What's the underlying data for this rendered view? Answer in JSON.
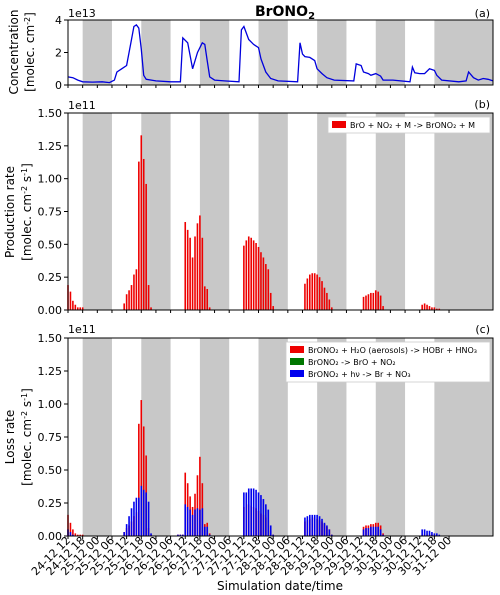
{
  "chart_data": [
    {
      "type": "line",
      "panel_tag": "(a)",
      "title": "BrONO",
      "title_sub": "2",
      "scale_label": "1e13",
      "ylabel_line1": "Concentration",
      "ylabel_line2": "[molec. cm",
      "ylabel_sup": "-2",
      "ylabel_close": "]",
      "ylim": [
        0,
        4
      ],
      "yticks": [
        "0",
        "2",
        "4"
      ],
      "ytick_values": [
        0,
        2,
        4
      ],
      "x_start_hours": 0,
      "x_end_hours": 174,
      "series": [
        {
          "color": "#0000dd",
          "points": [
            [
              0,
              0.5
            ],
            [
              2,
              0.45
            ],
            [
              4,
              0.3
            ],
            [
              6,
              0.2
            ],
            [
              10,
              0.18
            ],
            [
              14,
              0.2
            ],
            [
              17,
              0.15
            ],
            [
              19,
              0.3
            ],
            [
              20,
              0.8
            ],
            [
              22,
              1.0
            ],
            [
              24,
              1.2
            ],
            [
              26,
              2.8
            ],
            [
              27,
              3.6
            ],
            [
              28,
              3.7
            ],
            [
              29,
              3.5
            ],
            [
              30,
              2.2
            ],
            [
              31,
              0.6
            ],
            [
              32,
              0.35
            ],
            [
              36,
              0.25
            ],
            [
              42,
              0.2
            ],
            [
              46,
              0.2
            ],
            [
              47,
              2.9
            ],
            [
              49,
              2.6
            ],
            [
              51,
              1.0
            ],
            [
              53,
              2.0
            ],
            [
              55,
              2.6
            ],
            [
              56,
              2.5
            ],
            [
              57,
              1.5
            ],
            [
              58,
              0.5
            ],
            [
              60,
              0.3
            ],
            [
              64,
              0.25
            ],
            [
              70,
              0.2
            ],
            [
              71,
              3.4
            ],
            [
              72,
              3.6
            ],
            [
              74,
              2.8
            ],
            [
              76,
              2.5
            ],
            [
              78,
              2.3
            ],
            [
              79,
              1.6
            ],
            [
              81,
              0.8
            ],
            [
              83,
              0.4
            ],
            [
              86,
              0.25
            ],
            [
              94,
              0.2
            ],
            [
              95,
              2.6
            ],
            [
              96,
              1.9
            ],
            [
              97,
              1.75
            ],
            [
              99,
              1.7
            ],
            [
              101,
              1.5
            ],
            [
              102,
              1.0
            ],
            [
              104,
              0.7
            ],
            [
              106,
              0.45
            ],
            [
              109,
              0.3
            ],
            [
              117,
              0.25
            ],
            [
              118,
              1.3
            ],
            [
              120,
              1.2
            ],
            [
              121,
              0.8
            ],
            [
              123,
              0.7
            ],
            [
              124,
              0.6
            ],
            [
              126,
              0.7
            ],
            [
              128,
              0.55
            ],
            [
              129,
              0.3
            ],
            [
              133,
              0.3
            ],
            [
              140,
              0.2
            ],
            [
              141,
              1.1
            ],
            [
              142,
              0.75
            ],
            [
              144,
              0.7
            ],
            [
              146,
              0.7
            ],
            [
              148,
              1.0
            ],
            [
              150,
              0.9
            ],
            [
              151,
              0.6
            ],
            [
              153,
              0.3
            ],
            [
              160,
              0.2
            ],
            [
              163,
              0.25
            ],
            [
              164,
              0.8
            ],
            [
              166,
              0.45
            ],
            [
              168,
              0.3
            ],
            [
              170,
              0.4
            ],
            [
              172,
              0.35
            ],
            [
              174,
              0.25
            ]
          ]
        }
      ]
    },
    {
      "type": "bar",
      "panel_tag": "(b)",
      "scale_label": "1e11",
      "ylabel_line1": "Production rate",
      "ylabel_line2": "[molec. cm",
      "ylabel_sup": "-2",
      "ylabel_s": " s",
      "ylabel_sup2": "-1",
      "ylabel_close": "]",
      "ylim": [
        0,
        1.5
      ],
      "yticks": [
        "0.00",
        "0.25",
        "0.50",
        "0.75",
        "1.00",
        "1.25",
        "1.50"
      ],
      "ytick_values": [
        0,
        0.25,
        0.5,
        0.75,
        1.0,
        1.25,
        1.5
      ],
      "legend": [
        {
          "label": "BrO + NO₂ + M -> BrONO₂ + M",
          "color": "#ee0000"
        }
      ],
      "series": [
        {
          "color": "#ee0000",
          "values": [
            0.19,
            0.14,
            0.07,
            0.04,
            0.02,
            0.02,
            0.02,
            0,
            0,
            0,
            0,
            0,
            0,
            0,
            0,
            0,
            0,
            0,
            0,
            0,
            0,
            0,
            0,
            0.05,
            0.12,
            0.15,
            0.19,
            0.27,
            0.31,
            1.13,
            1.33,
            1.15,
            0.96,
            0.19,
            0.02,
            0,
            0,
            0,
            0,
            0,
            0,
            0,
            0,
            0,
            0,
            0,
            0,
            0,
            0.67,
            0.61,
            0.55,
            0.4,
            0.56,
            0.66,
            0.72,
            0.55,
            0.18,
            0.16,
            0.02,
            0,
            0,
            0,
            0,
            0,
            0,
            0,
            0,
            0,
            0,
            0,
            0,
            0,
            0.49,
            0.53,
            0.56,
            0.55,
            0.53,
            0.51,
            0.48,
            0.44,
            0.4,
            0.35,
            0.31,
            0.13,
            0.03,
            0,
            0,
            0,
            0,
            0,
            0,
            0,
            0,
            0,
            0,
            0,
            0,
            0.2,
            0.24,
            0.27,
            0.28,
            0.28,
            0.27,
            0.25,
            0.22,
            0.17,
            0.13,
            0.08,
            0.02,
            0,
            0,
            0,
            0,
            0,
            0,
            0,
            0,
            0,
            0,
            0,
            0,
            0.1,
            0.11,
            0.12,
            0.13,
            0.13,
            0.15,
            0.14,
            0.11,
            0.03,
            0,
            0,
            0,
            0,
            0,
            0,
            0,
            0,
            0,
            0,
            0,
            0,
            0,
            0,
            0,
            0.04,
            0.05,
            0.04,
            0.03,
            0.02,
            0.02,
            0.01,
            0.01,
            0,
            0,
            0,
            0,
            0,
            0,
            0,
            0,
            0,
            0,
            0,
            0,
            0,
            0,
            0,
            0,
            0,
            0,
            0,
            0,
            0,
            0
          ]
        }
      ]
    },
    {
      "type": "bar",
      "panel_tag": "(c)",
      "scale_label": "1e11",
      "ylabel_line1": "Loss rate",
      "ylabel_line2": "[molec. cm",
      "ylabel_sup": "-2",
      "ylabel_s": " s",
      "ylabel_sup2": "-1",
      "ylabel_close": "]",
      "xlabel": "Simulation date/time",
      "ylim": [
        0,
        1.5
      ],
      "yticks": [
        "0.00",
        "0.25",
        "0.50",
        "0.75",
        "1.00",
        "1.25",
        "1.50"
      ],
      "ytick_values": [
        0,
        0.25,
        0.5,
        0.75,
        1.0,
        1.25,
        1.5
      ],
      "legend": [
        {
          "label": "BrONO₂ + H₂O (aerosols) -> HOBr + HNO₃",
          "color": "#ee0000"
        },
        {
          "label": "BrONO₂ ->  BrO + NO₂",
          "color": "#007700"
        },
        {
          "label": "BrONO₂ + hν  ->  Br + NO₃",
          "color": "#0000ee"
        }
      ],
      "series": [
        {
          "name_index": 0,
          "color": "#ee0000",
          "values": [
            0.16,
            0.1,
            0.05,
            0.02,
            0.01,
            0.01,
            0.01,
            0,
            0,
            0,
            0,
            0,
            0,
            0,
            0,
            0,
            0,
            0,
            0,
            0,
            0,
            0,
            0,
            0.03,
            0.06,
            0.08,
            0.11,
            0.15,
            0.18,
            0.85,
            1.03,
            0.83,
            0.61,
            0.06,
            0.01,
            0,
            0,
            0,
            0,
            0,
            0,
            0,
            0,
            0,
            0,
            0.01,
            0.01,
            0.01,
            0.48,
            0.4,
            0.3,
            0.22,
            0.32,
            0.46,
            0.6,
            0.4,
            0.09,
            0.1,
            0.02,
            0,
            0,
            0,
            0,
            0,
            0,
            0,
            0,
            0,
            0,
            0,
            0,
            0,
            0.22,
            0.24,
            0.24,
            0.23,
            0.22,
            0.21,
            0.19,
            0.17,
            0.16,
            0.14,
            0.12,
            0.04,
            0.01,
            0,
            0,
            0,
            0,
            0,
            0,
            0,
            0,
            0,
            0,
            0,
            0,
            0.11,
            0.12,
            0.13,
            0.14,
            0.14,
            0.13,
            0.12,
            0.11,
            0.09,
            0.07,
            0.05,
            0.01,
            0,
            0,
            0,
            0,
            0,
            0,
            0,
            0,
            0,
            0,
            0,
            0,
            0.07,
            0.08,
            0.08,
            0.09,
            0.09,
            0.1,
            0.1,
            0.08,
            0.02,
            0,
            0,
            0,
            0,
            0,
            0,
            0,
            0,
            0,
            0,
            0,
            0,
            0,
            0,
            0,
            0.01,
            0.01,
            0.01,
            0.01,
            0.01,
            0.01,
            0,
            0,
            0,
            0,
            0,
            0,
            0,
            0,
            0,
            0,
            0,
            0,
            0,
            0,
            0,
            0,
            0,
            0,
            0,
            0,
            0,
            0,
            0,
            0
          ]
        },
        {
          "name_index": 2,
          "color": "#0000ee",
          "values": [
            0.05,
            0.03,
            0.01,
            0,
            0,
            0,
            0,
            0,
            0,
            0,
            0,
            0,
            0,
            0,
            0,
            0,
            0,
            0,
            0,
            0,
            0,
            0,
            0,
            0.03,
            0.09,
            0.15,
            0.21,
            0.26,
            0.29,
            0.29,
            0.38,
            0.35,
            0.33,
            0.26,
            0.02,
            0,
            0,
            0,
            0,
            0,
            0,
            0,
            0,
            0,
            0,
            0.01,
            0.01,
            0.01,
            0.24,
            0.22,
            0.2,
            0.16,
            0.2,
            0.21,
            0.2,
            0.21,
            0.07,
            0.07,
            0.01,
            0,
            0,
            0,
            0,
            0,
            0,
            0,
            0,
            0,
            0,
            0,
            0,
            0,
            0.33,
            0.33,
            0.36,
            0.36,
            0.36,
            0.35,
            0.33,
            0.31,
            0.28,
            0.24,
            0.2,
            0.08,
            0.01,
            0,
            0,
            0,
            0,
            0,
            0,
            0,
            0,
            0,
            0,
            0,
            0,
            0.14,
            0.15,
            0.16,
            0.16,
            0.16,
            0.16,
            0.15,
            0.13,
            0.1,
            0.08,
            0.05,
            0.01,
            0,
            0,
            0,
            0,
            0,
            0,
            0,
            0,
            0,
            0,
            0,
            0,
            0.05,
            0.06,
            0.06,
            0.07,
            0.07,
            0.07,
            0.07,
            0.05,
            0.01,
            0,
            0,
            0,
            0,
            0,
            0,
            0,
            0,
            0,
            0,
            0,
            0,
            0,
            0,
            0,
            0.05,
            0.05,
            0.04,
            0.04,
            0.03,
            0.02,
            0.02,
            0.01,
            0,
            0,
            0,
            0,
            0,
            0,
            0,
            0,
            0,
            0,
            0,
            0,
            0,
            0,
            0,
            0,
            0,
            0,
            0,
            0,
            0,
            0
          ]
        }
      ]
    }
  ],
  "x_axis": {
    "tick_labels": [
      "24-12 12",
      "24-12 18",
      "25-12 00",
      "25-12 06",
      "25-12 12",
      "25-12 18",
      "26-12 00",
      "26-12 06",
      "26-12 12",
      "26-12 18",
      "27-12 00",
      "27-12 06",
      "27-12 12",
      "27-12 18",
      "28-12 00",
      "28-12 06",
      "28-12 12",
      "28-12 18",
      "29-12 00",
      "29-12 06",
      "29-12 12",
      "29-12 18",
      "30-12 00",
      "30-12 06",
      "30-12 12",
      "30-12 18",
      "31-12 00"
    ],
    "tick_hours": [
      0,
      6,
      12,
      18,
      24,
      30,
      36,
      42,
      48,
      54,
      60,
      66,
      72,
      78,
      84,
      90,
      96,
      102,
      108,
      114,
      120,
      126,
      132,
      138,
      144,
      150,
      156
    ],
    "night_bands_hours": [
      [
        6,
        18
      ],
      [
        30,
        42
      ],
      [
        54,
        66
      ],
      [
        78,
        90
      ],
      [
        102,
        114
      ],
      [
        126,
        138
      ],
      [
        150,
        174
      ]
    ]
  },
  "colors": {
    "night_band": "#c8c8c8",
    "line": "#0000dd",
    "production": "#ee0000",
    "loss_aerosol": "#ee0000",
    "loss_thermal": "#007700",
    "loss_photolysis": "#0000ee"
  }
}
